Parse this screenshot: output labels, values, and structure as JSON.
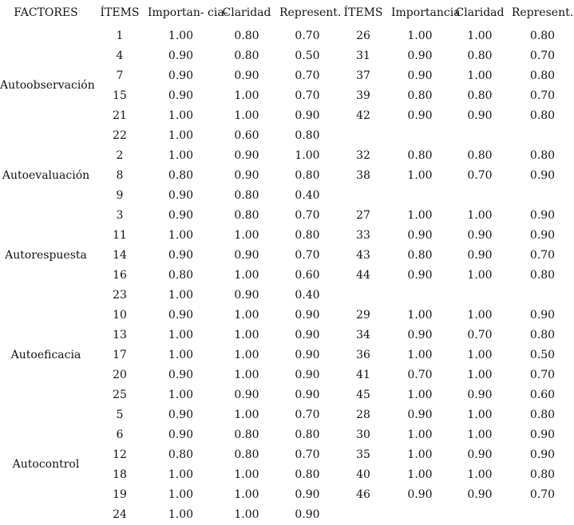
{
  "table": {
    "headers": {
      "factors": "FACTORES",
      "items_left": "ÍTEMS",
      "importance_left": "Importan- cia-",
      "clarity_left": "Claridad",
      "representativeness_left": "Represent.",
      "items_right": "ÍTEMS",
      "importance_right": "Importancia",
      "clarity_right": "Claridad",
      "representativeness_right": "Represent."
    },
    "groups": [
      {
        "factor": "Autoobservación",
        "rows": [
          {
            "item": "1",
            "imp": "1.00",
            "cla": "0.80",
            "rep": "0.70",
            "item2": "26",
            "imp2": "1.00",
            "cla2": "1.00",
            "rep2": "0.80"
          },
          {
            "item": "4",
            "imp": "0.90",
            "cla": "0.80",
            "rep": "0.50",
            "item2": "31",
            "imp2": "0.90",
            "cla2": "0.80",
            "rep2": "0.70"
          },
          {
            "item": "7",
            "imp": "0.90",
            "cla": "0.90",
            "rep": "0.70",
            "item2": "37",
            "imp2": "0.90",
            "cla2": "1.00",
            "rep2": "0.80"
          },
          {
            "item": "15",
            "imp": "0.90",
            "cla": "1.00",
            "rep": "0.70",
            "item2": "39",
            "imp2": "0.80",
            "cla2": "0.80",
            "rep2": "0.70"
          },
          {
            "item": "21",
            "imp": "1.00",
            "cla": "1.00",
            "rep": "0.90",
            "item2": "42",
            "imp2": "0.90",
            "cla2": "0.90",
            "rep2": "0.80"
          },
          {
            "item": "22",
            "imp": "1.00",
            "cla": "0.60",
            "rep": "0.80",
            "item2": "",
            "imp2": "",
            "cla2": "",
            "rep2": ""
          }
        ]
      },
      {
        "factor": "Autoevaluación",
        "rows": [
          {
            "item": "2",
            "imp": "1.00",
            "cla": "0.90",
            "rep": "1.00",
            "item2": "32",
            "imp2": "0.80",
            "cla2": "0.80",
            "rep2": "0.80"
          },
          {
            "item": "8",
            "imp": "0.80",
            "cla": "0.90",
            "rep": "0.80",
            "item2": "38",
            "imp2": "1.00",
            "cla2": "0.70",
            "rep2": "0.90"
          },
          {
            "item": "9",
            "imp": "0.90",
            "cla": "0.80",
            "rep": "0.40",
            "item2": "",
            "imp2": "",
            "cla2": "",
            "rep2": ""
          }
        ]
      },
      {
        "factor": "Autorespuesta",
        "rows": [
          {
            "item": "3",
            "imp": "0.90",
            "cla": "0.80",
            "rep": "0.70",
            "item2": "27",
            "imp2": "1.00",
            "cla2": "1.00",
            "rep2": "0.90"
          },
          {
            "item": "11",
            "imp": "1.00",
            "cla": "1.00",
            "rep": "0.80",
            "item2": "33",
            "imp2": "0.90",
            "cla2": "0.90",
            "rep2": "0.90"
          },
          {
            "item": "14",
            "imp": "0.90",
            "cla": "0.90",
            "rep": "0.70",
            "item2": "43",
            "imp2": "0.80",
            "cla2": "0.90",
            "rep2": "0.70"
          },
          {
            "item": "16",
            "imp": "0.80",
            "cla": "1.00",
            "rep": "0.60",
            "item2": "44",
            "imp2": "0.90",
            "cla2": "1.00",
            "rep2": "0.80"
          },
          {
            "item": "23",
            "imp": "1.00",
            "cla": "0.90",
            "rep": "0.40",
            "item2": "",
            "imp2": "",
            "cla2": "",
            "rep2": ""
          }
        ]
      },
      {
        "factor": "Autoeficacia",
        "rows": [
          {
            "item": "10",
            "imp": "0.90",
            "cla": "1.00",
            "rep": "0.90",
            "item2": "29",
            "imp2": "1.00",
            "cla2": "1.00",
            "rep2": "0.90"
          },
          {
            "item": "13",
            "imp": "1.00",
            "cla": "1.00",
            "rep": "0.90",
            "item2": "34",
            "imp2": "0.90",
            "cla2": "0.70",
            "rep2": "0.80"
          },
          {
            "item": "17",
            "imp": "1.00",
            "cla": "1.00",
            "rep": "0.90",
            "item2": "36",
            "imp2": "1.00",
            "cla2": "1.00",
            "rep2": "0.50"
          },
          {
            "item": "20",
            "imp": "0.90",
            "cla": "1.00",
            "rep": "0.90",
            "item2": "41",
            "imp2": "0.70",
            "cla2": "1.00",
            "rep2": "0.70"
          },
          {
            "item": "25",
            "imp": "1.00",
            "cla": "0.90",
            "rep": "0.90",
            "item2": "45",
            "imp2": "1.00",
            "cla2": "0.90",
            "rep2": "0.60"
          }
        ]
      },
      {
        "factor": "Autocontrol",
        "rows": [
          {
            "item": "5",
            "imp": "0.90",
            "cla": "1.00",
            "rep": "0.70",
            "item2": "28",
            "imp2": "0.90",
            "cla2": "1.00",
            "rep2": "0.80"
          },
          {
            "item": "6",
            "imp": "0.90",
            "cla": "0.80",
            "rep": "0.80",
            "item2": "30",
            "imp2": "1.00",
            "cla2": "1.00",
            "rep2": "0.90"
          },
          {
            "item": "12",
            "imp": "0.80",
            "cla": "0.80",
            "rep": "0.70",
            "item2": "35",
            "imp2": "1.00",
            "cla2": "0.90",
            "rep2": "0.90"
          },
          {
            "item": "18",
            "imp": "1.00",
            "cla": "1.00",
            "rep": "0.80",
            "item2": "40",
            "imp2": "1.00",
            "cla2": "1.00",
            "rep2": "0.80"
          },
          {
            "item": "19",
            "imp": "1.00",
            "cla": "1.00",
            "rep": "0.90",
            "item2": "46",
            "imp2": "0.90",
            "cla2": "0.90",
            "rep2": "0.70"
          },
          {
            "item": "24",
            "imp": "1.00",
            "cla": "1.00",
            "rep": "0.90",
            "item2": "",
            "imp2": "",
            "cla2": "",
            "rep2": ""
          }
        ]
      }
    ]
  }
}
